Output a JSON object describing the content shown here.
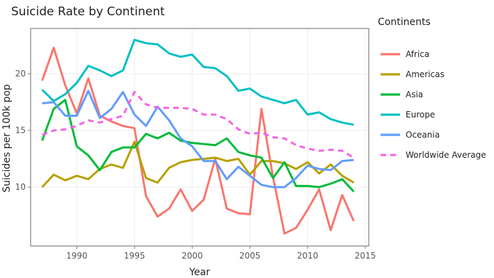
{
  "chart_data": {
    "type": "line",
    "title": "Suicide Rate by Continent",
    "xlabel": "Year",
    "ylabel": "Suicides per 100k pop",
    "legend_title": "Continents",
    "legend_position": "right",
    "grid": true,
    "xlim": [
      1986,
      2015.3
    ],
    "ylim": [
      4.8,
      24.0
    ],
    "xticks": [
      1990,
      1995,
      2000,
      2005,
      2010,
      2015
    ],
    "xtick_labels": [
      "1990",
      "1995",
      "2000",
      "2005",
      "2010",
      "2015"
    ],
    "yticks": [
      10,
      15,
      20
    ],
    "ytick_labels": [
      "10",
      "15",
      "20"
    ],
    "x": [
      1987,
      1988,
      1989,
      1990,
      1991,
      1992,
      1993,
      1994,
      1995,
      1996,
      1997,
      1998,
      1999,
      2000,
      2001,
      2002,
      2003,
      2004,
      2005,
      2006,
      2007,
      2008,
      2009,
      2010,
      2011,
      2012,
      2013,
      2014
    ],
    "series": [
      {
        "name": "Africa",
        "color": "#F8766D",
        "dash": "solid",
        "values": [
          19.4,
          22.3,
          19.0,
          16.5,
          19.6,
          16.3,
          15.8,
          15.4,
          15.2,
          9.2,
          7.4,
          8.1,
          9.8,
          7.9,
          8.9,
          12.5,
          8.1,
          7.7,
          7.6,
          16.9,
          10.9,
          5.9,
          6.4,
          8.0,
          9.8,
          6.2,
          9.3,
          7.0
        ]
      },
      {
        "name": "Americas",
        "color": "#B79F00",
        "dash": "solid",
        "values": [
          10.0,
          11.1,
          10.6,
          11.0,
          10.7,
          11.6,
          12.0,
          11.7,
          14.0,
          10.8,
          10.4,
          11.7,
          12.2,
          12.4,
          12.5,
          12.6,
          12.3,
          12.5,
          11.1,
          12.3,
          12.3,
          12.1,
          11.6,
          12.2,
          11.2,
          12.0,
          11.0,
          10.4
        ]
      },
      {
        "name": "Asia",
        "color": "#00BA38",
        "dash": "solid",
        "values": [
          14.1,
          16.9,
          17.7,
          13.6,
          12.8,
          11.5,
          13.1,
          13.5,
          13.5,
          14.7,
          14.3,
          14.8,
          14.1,
          13.9,
          13.8,
          13.7,
          14.3,
          13.1,
          12.8,
          12.6,
          10.8,
          12.2,
          10.1,
          10.1,
          10.0,
          10.3,
          10.7,
          9.6
        ]
      },
      {
        "name": "Europe",
        "color": "#00BFC4",
        "dash": "solid",
        "values": [
          18.6,
          17.6,
          18.2,
          19.2,
          20.7,
          20.3,
          19.8,
          20.3,
          23.0,
          22.7,
          22.6,
          21.8,
          21.5,
          21.7,
          20.6,
          20.5,
          19.8,
          18.5,
          18.7,
          18.0,
          17.7,
          17.4,
          17.7,
          16.4,
          16.6,
          16.0,
          15.7,
          15.5
        ]
      },
      {
        "name": "Oceania",
        "color": "#619CFF",
        "dash": "solid",
        "values": [
          17.4,
          17.5,
          16.3,
          16.3,
          18.5,
          16.1,
          16.9,
          18.4,
          16.4,
          15.4,
          17.1,
          15.9,
          14.3,
          13.6,
          12.3,
          12.3,
          10.7,
          11.8,
          11.0,
          10.2,
          10.0,
          10.0,
          10.8,
          11.9,
          11.6,
          11.5,
          12.3,
          12.4
        ]
      },
      {
        "name": "Worldwide Average",
        "color": "#F564E3",
        "dash": "dashed",
        "values": [
          14.6,
          15.0,
          15.1,
          15.4,
          15.9,
          15.7,
          16.0,
          16.3,
          18.4,
          17.3,
          17.0,
          17.0,
          17.0,
          16.9,
          16.4,
          16.4,
          16.0,
          15.1,
          14.7,
          14.8,
          14.4,
          14.3,
          13.7,
          13.4,
          13.2,
          13.3,
          13.2,
          12.6
        ]
      }
    ]
  }
}
